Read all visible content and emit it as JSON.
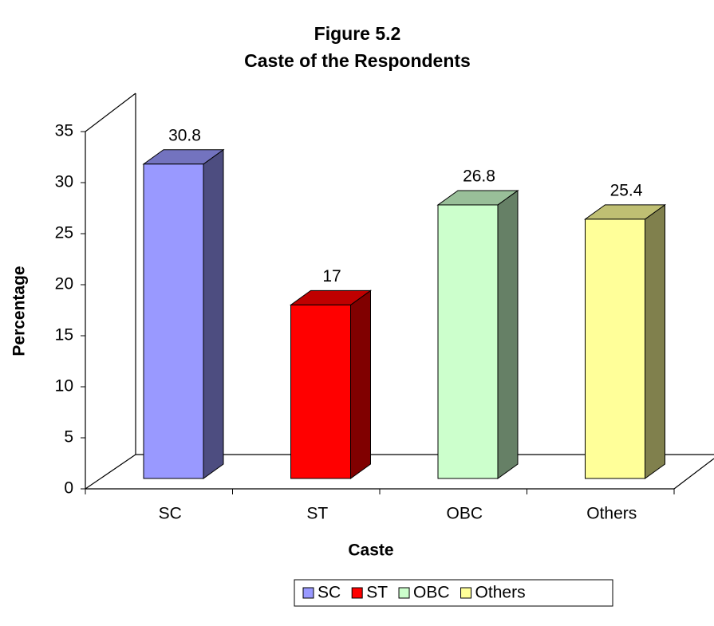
{
  "chart_data": {
    "type": "bar3d",
    "title": "Figure 5.2",
    "subtitle": "Caste of the Respondents",
    "categories": [
      "SC",
      "ST",
      "OBC",
      "Others"
    ],
    "values": [
      30.8,
      17,
      26.8,
      25.4
    ],
    "colors": [
      "#9999ff",
      "#ff0000",
      "#ccffcc",
      "#ffff99"
    ],
    "x_label": "Caste",
    "y_label": "Percentage",
    "ylim": [
      0,
      35
    ],
    "yticks": [
      0,
      5,
      10,
      15,
      20,
      25,
      30,
      35
    ],
    "grid": false,
    "legend": "bottom"
  }
}
